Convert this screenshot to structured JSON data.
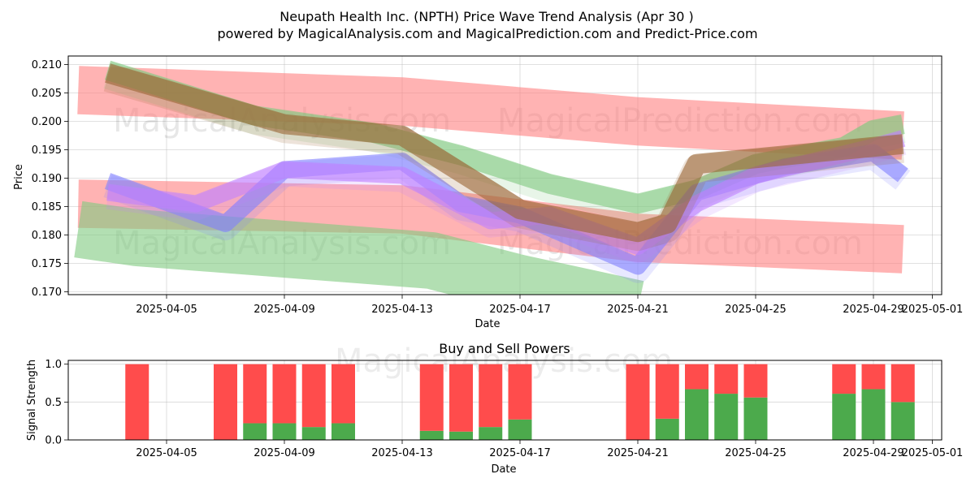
{
  "title_line1": "Neupath Health Inc. (NPTH) Price Wave Trend Analysis (Apr 30 )",
  "title_line2": "powered by MagicalAnalysis.com and MagicalPrediction.com and Predict-Price.com",
  "watermarks": [
    "MagicalAnalysis.com",
    "MagicalPrediction.com"
  ],
  "chart_data": [
    {
      "type": "area",
      "title": "Neupath Health Inc. (NPTH) Price Wave Trend Analysis (Apr 30 )",
      "xlabel": "Date",
      "ylabel": "Price",
      "x_range": [
        "2025-04-02",
        "2025-05-01"
      ],
      "ylim": [
        0.1695,
        0.2115
      ],
      "x_ticks": [
        "2025-04-05",
        "2025-04-09",
        "2025-04-13",
        "2025-04-17",
        "2025-04-21",
        "2025-04-25",
        "2025-04-29",
        "2025-05-01"
      ],
      "y_ticks": [
        "0.170",
        "0.175",
        "0.180",
        "0.185",
        "0.190",
        "0.195",
        "0.200",
        "0.205",
        "0.210"
      ],
      "grid": true,
      "series": [
        {
          "name": "red upper channel",
          "color": "#ff8080",
          "width": 0.0085,
          "points": [
            [
              "2025-04-02",
              0.2055
            ],
            [
              "2025-04-13",
              0.2035
            ],
            [
              "2025-04-21",
              0.2
            ],
            [
              "2025-04-30",
              0.1975
            ]
          ]
        },
        {
          "name": "red lower channel",
          "color": "#ff8080",
          "width": 0.0085,
          "points": [
            [
              "2025-04-02",
              0.1855
            ],
            [
              "2025-04-13",
              0.1845
            ],
            [
              "2025-04-21",
              0.1795
            ],
            [
              "2025-04-30",
              0.1775
            ]
          ]
        },
        {
          "name": "green lower channel",
          "color": "#7fc97f",
          "width": 0.01,
          "points": [
            [
              "2025-04-02",
              0.181
            ],
            [
              "2025-04-04",
              0.1795
            ],
            [
              "2025-04-14",
              0.1755
            ],
            [
              "2025-04-17",
              0.1715
            ],
            [
              "2025-04-21",
              0.167
            ]
          ]
        },
        {
          "name": "green wave",
          "color": "#7fc97f",
          "width": 0.0035,
          "points": [
            [
              "2025-04-03",
              0.209
            ],
            [
              "2025-04-08",
              0.201
            ],
            [
              "2025-04-12",
              0.198
            ],
            [
              "2025-04-15",
              0.194
            ],
            [
              "2025-04-18",
              0.189
            ],
            [
              "2025-04-21",
              0.1855
            ],
            [
              "2025-04-23",
              0.188
            ],
            [
              "2025-04-25",
              0.1925
            ],
            [
              "2025-04-28",
              0.1955
            ],
            [
              "2025-04-29",
              0.1985
            ],
            [
              "2025-04-30",
              0.1995
            ]
          ]
        },
        {
          "name": "blue wave",
          "color": "#8080ff",
          "width": 0.003,
          "points": [
            [
              "2025-04-03",
              0.1895
            ],
            [
              "2025-04-07",
              0.182
            ],
            [
              "2025-04-09",
              0.1915
            ],
            [
              "2025-04-13",
              0.193
            ],
            [
              "2025-04-15",
              0.1855
            ],
            [
              "2025-04-17",
              0.1835
            ],
            [
              "2025-04-21",
              0.1745
            ],
            [
              "2025-04-23",
              0.1875
            ],
            [
              "2025-04-26",
              0.192
            ],
            [
              "2025-04-29",
              0.1945
            ],
            [
              "2025-04-30",
              0.1905
            ]
          ]
        },
        {
          "name": "purple wave",
          "color": "#c080ff",
          "width": 0.003,
          "points": [
            [
              "2025-04-03",
              0.1875
            ],
            [
              "2025-04-06",
              0.1855
            ],
            [
              "2025-04-09",
              0.1915
            ],
            [
              "2025-04-13",
              0.1905
            ],
            [
              "2025-04-16",
              0.1825
            ],
            [
              "2025-04-18",
              0.1835
            ],
            [
              "2025-04-21",
              0.178
            ],
            [
              "2025-04-23",
              0.1855
            ],
            [
              "2025-04-25",
              0.1905
            ],
            [
              "2025-04-29",
              0.1955
            ],
            [
              "2025-04-30",
              0.197
            ]
          ]
        },
        {
          "name": "brown wave",
          "color": "#996633",
          "width": 0.0035,
          "points": [
            [
              "2025-04-03",
              0.2085
            ],
            [
              "2025-04-06",
              0.204
            ],
            [
              "2025-04-09",
              0.1995
            ],
            [
              "2025-04-13",
              0.1975
            ],
            [
              "2025-04-17",
              0.1845
            ],
            [
              "2025-04-21",
              0.1805
            ],
            [
              "2025-04-22",
              0.182
            ],
            [
              "2025-04-23",
              0.1925
            ],
            [
              "2025-04-26",
              0.194
            ],
            [
              "2025-04-30",
              0.196
            ]
          ]
        }
      ]
    },
    {
      "type": "bar",
      "title": "Buy and Sell Powers",
      "xlabel": "Date",
      "ylabel": "Signal Strength",
      "ylim": [
        0,
        1.05
      ],
      "y_ticks": [
        "0.0",
        "0.5",
        "1.0"
      ],
      "x_ticks": [
        "2025-04-05",
        "2025-04-09",
        "2025-04-13",
        "2025-04-17",
        "2025-04-21",
        "2025-04-25",
        "2025-04-29",
        "2025-05-01"
      ],
      "categories": [
        "2025-04-04",
        "2025-04-07",
        "2025-04-08",
        "2025-04-09",
        "2025-04-10",
        "2025-04-11",
        "2025-04-14",
        "2025-04-15",
        "2025-04-16",
        "2025-04-17",
        "2025-04-21",
        "2025-04-22",
        "2025-04-23",
        "2025-04-24",
        "2025-04-25",
        "2025-04-28",
        "2025-04-29",
        "2025-04-30"
      ],
      "series": [
        {
          "name": "Buy",
          "color": "#4caa4c",
          "values": [
            0.0,
            0.0,
            0.22,
            0.22,
            0.17,
            0.22,
            0.12,
            0.11,
            0.17,
            0.27,
            0.0,
            0.28,
            0.67,
            0.61,
            0.56,
            0.61,
            0.67,
            0.5
          ]
        },
        {
          "name": "Sell",
          "color": "#ff4c4c",
          "values": [
            1.0,
            1.0,
            0.78,
            0.78,
            0.83,
            0.78,
            0.88,
            0.89,
            0.83,
            0.73,
            1.0,
            0.72,
            0.33,
            0.39,
            0.44,
            0.39,
            0.33,
            0.5
          ]
        }
      ]
    }
  ]
}
